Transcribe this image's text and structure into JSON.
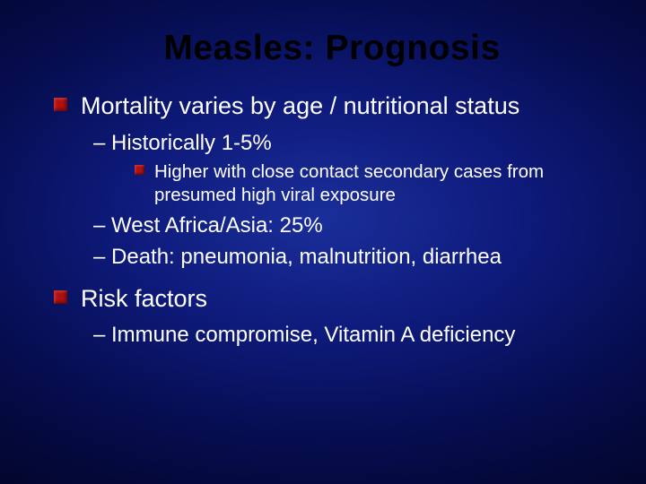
{
  "colors": {
    "title_text": "#000000",
    "body_text": "#ffffff",
    "bullet_fill": "#b01010",
    "bg_center": "#1a2e9a",
    "bg_mid": "#0e1a7a",
    "bg_outer": "#060d50",
    "bg_edge": "#020528"
  },
  "typography": {
    "family": "Arial",
    "title_size_pt": 39,
    "title_weight": "bold",
    "lvl1_size_pt": 27,
    "lvl2_size_pt": 24,
    "lvl3_size_pt": 20.5
  },
  "title": "Measles: Prognosis",
  "items": [
    {
      "level": 1,
      "text": "Mortality varies by age / nutritional status"
    },
    {
      "level": 2,
      "text": "– Historically 1-5%"
    },
    {
      "level": 3,
      "text": "Higher with close contact secondary cases from presumed high viral exposure"
    },
    {
      "level": 2,
      "text": "– West Africa/Asia: 25%"
    },
    {
      "level": 2,
      "text": "– Death: pneumonia, malnutrition, diarrhea"
    },
    {
      "level": 1,
      "text": "Risk factors"
    },
    {
      "level": 2,
      "text": "– Immune compromise, Vitamin A deficiency"
    }
  ]
}
